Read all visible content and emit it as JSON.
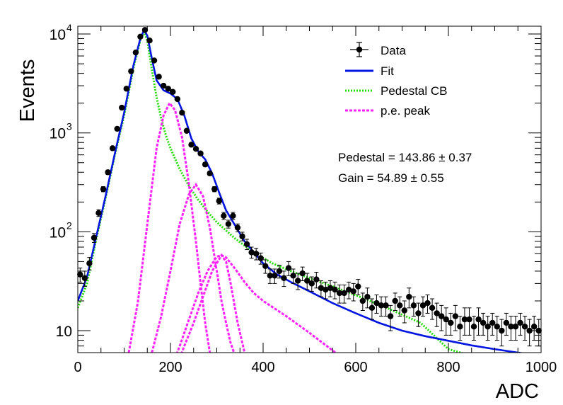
{
  "chart_data": {
    "type": "scatter",
    "title": "",
    "xlabel": "ADC",
    "ylabel": "Events",
    "xlim": [
      0,
      1000
    ],
    "ylim": [
      6,
      12000
    ],
    "yscale": "log",
    "grid": false,
    "legend_position": "top-right",
    "x_ticks": [
      "0",
      "200",
      "400",
      "600",
      "800",
      "1000"
    ],
    "y_tick_values": [
      10,
      100,
      1000,
      10000
    ],
    "y_ticks": [
      {
        "base": "10",
        "exp": ""
      },
      {
        "base": "10",
        "exp": "2"
      },
      {
        "base": "10",
        "exp": "3"
      },
      {
        "base": "10",
        "exp": "4"
      }
    ],
    "annotations": [
      "Pedestal = 143.86 ± 0.37",
      "Gain = 54.89 ± 0.55"
    ],
    "series": [
      {
        "name": "Data",
        "kind": "points",
        "color": "#000000",
        "x": [
          5,
          15,
          25,
          35,
          45,
          55,
          65,
          75,
          85,
          95,
          105,
          115,
          125,
          135,
          145,
          155,
          165,
          175,
          185,
          195,
          205,
          215,
          225,
          235,
          245,
          255,
          265,
          275,
          285,
          295,
          305,
          315,
          325,
          335,
          345,
          355,
          365,
          375,
          385,
          395,
          405,
          415,
          425,
          435,
          445,
          455,
          465,
          475,
          485,
          495,
          505,
          515,
          525,
          535,
          545,
          555,
          565,
          575,
          585,
          595,
          605,
          615,
          625,
          635,
          645,
          655,
          665,
          675,
          685,
          695,
          705,
          715,
          725,
          735,
          745,
          755,
          765,
          775,
          785,
          795,
          805,
          815,
          825,
          835,
          845,
          855,
          865,
          875,
          885,
          895,
          905,
          915,
          925,
          935,
          945,
          955,
          965,
          975,
          985,
          995
        ],
        "y": [
          37,
          34,
          48,
          87,
          155,
          270,
          400,
          700,
          1100,
          1800,
          2800,
          4200,
          6500,
          9400,
          11000,
          8600,
          5400,
          3700,
          3000,
          2800,
          2600,
          2200,
          1600,
          1050,
          760,
          690,
          620,
          480,
          390,
          270,
          205,
          145,
          120,
          145,
          110,
          90,
          75,
          62,
          60,
          54,
          45,
          36,
          36,
          40,
          34,
          43,
          36,
          32,
          38,
          32,
          30,
          33,
          27,
          26,
          27,
          26,
          24,
          24,
          26,
          25,
          28,
          20,
          22,
          17,
          19,
          18,
          18,
          14,
          20,
          18,
          16,
          22,
          18,
          15,
          18,
          19,
          17,
          15,
          14,
          13,
          12,
          14,
          11,
          13,
          13,
          11,
          13,
          12,
          11,
          12,
          11,
          10,
          12,
          11,
          11,
          12,
          11,
          10,
          11,
          10
        ],
        "y_err": [
          6,
          6,
          7,
          9,
          12,
          16,
          20,
          26,
          33,
          42,
          53,
          65,
          81,
          97,
          105,
          93,
          73,
          61,
          55,
          53,
          51,
          47,
          40,
          32,
          28,
          26,
          25,
          22,
          20,
          16,
          14,
          12,
          11,
          12,
          10,
          9,
          9,
          8,
          8,
          7,
          7,
          6,
          6,
          6,
          6,
          7,
          6,
          6,
          6,
          6,
          5,
          6,
          5,
          5,
          5,
          5,
          5,
          5,
          5,
          5,
          5,
          4,
          5,
          4,
          4,
          4,
          4,
          4,
          4,
          4,
          4,
          5,
          4,
          4,
          4,
          4,
          4,
          4,
          4,
          4,
          3,
          4,
          3,
          4,
          4,
          3,
          4,
          3,
          3,
          3,
          3,
          3,
          3,
          3,
          3,
          3,
          3,
          3,
          3,
          3
        ]
      },
      {
        "name": "Fit",
        "kind": "line",
        "style": "solid",
        "color": "#0015e0",
        "x": [
          0,
          20,
          40,
          60,
          80,
          100,
          120,
          135,
          143,
          150,
          160,
          170,
          185,
          200,
          215,
          230,
          245,
          260,
          275,
          290,
          305,
          320,
          340,
          360,
          380,
          400,
          430,
          460,
          500,
          550,
          600,
          650,
          700,
          750,
          800,
          850,
          900,
          950,
          1000
        ],
        "y": [
          20,
          35,
          90,
          230,
          620,
          1600,
          4800,
          9000,
          11000,
          9600,
          5600,
          3400,
          2700,
          2500,
          2200,
          1500,
          880,
          650,
          540,
          390,
          250,
          165,
          115,
          80,
          62,
          48,
          37,
          31,
          25,
          19,
          15,
          12,
          10,
          8.8,
          7.9,
          7.1,
          6.5,
          6.0,
          5.6
        ]
      },
      {
        "name": "Pedestal CB",
        "kind": "line",
        "style": "dotted",
        "color": "#22dd00",
        "x": [
          0,
          20,
          40,
          60,
          80,
          100,
          120,
          135,
          143,
          150,
          160,
          170,
          180,
          190,
          200,
          220,
          240,
          260,
          280,
          300,
          340,
          380,
          420,
          460,
          500,
          560,
          620,
          680,
          740,
          800,
          1000
        ],
        "y": [
          17,
          30,
          85,
          220,
          600,
          1500,
          4500,
          8700,
          10500,
          8600,
          4300,
          2300,
          1400,
          950,
          700,
          430,
          290,
          210,
          160,
          125,
          85,
          62,
          48,
          40,
          34,
          27,
          21,
          16,
          12,
          6.5,
          3.5
        ]
      },
      {
        "name": "p.e. peak",
        "kind": "line",
        "style": "dotted",
        "color": "#ff22ff",
        "components": [
          {
            "x": [
              110,
              130,
              150,
              170,
              185,
              198,
              210,
              225,
              240,
              255,
              265,
              275,
              285
            ],
            "y": [
              6,
              20,
              120,
              700,
              1500,
              2000,
              1700,
              900,
              300,
              80,
              30,
              12,
              6
            ]
          },
          {
            "x": [
              160,
              180,
              200,
              220,
              240,
              255,
              270,
              285,
              300,
              310,
              320,
              330,
              340
            ],
            "y": [
              6,
              14,
              40,
              120,
              240,
              300,
              230,
              110,
              40,
              20,
              12,
              7.5,
              5.5
            ]
          },
          {
            "x": [
              200,
              220,
              240,
              260,
              280,
              300,
              310,
              320,
              340,
              360,
              380,
              400,
              450,
              500,
              550,
              560
            ],
            "y": [
              4,
              7,
              13,
              24,
              40,
              56,
              58,
              55,
              42,
              31,
              24,
              20,
              14,
              9.5,
              6.3,
              5.8
            ]
          },
          {
            "x": [
              210,
              230,
              250,
              270,
              290,
              310,
              320,
              330,
              345,
              360
            ],
            "y": [
              4,
              7,
              12,
              22,
              40,
              58,
              50,
              30,
              12,
              6
            ]
          }
        ]
      }
    ]
  }
}
